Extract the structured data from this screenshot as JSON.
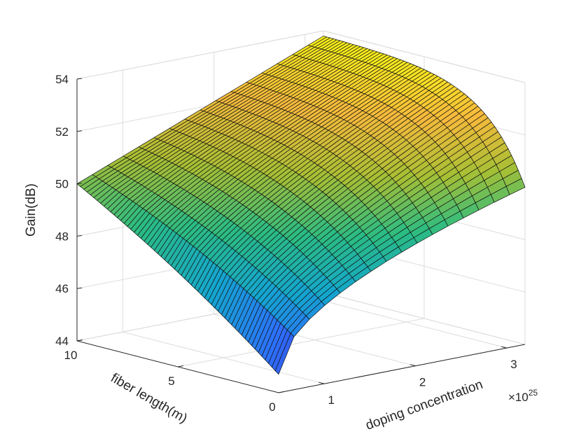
{
  "chart_data": {
    "type": "surface",
    "title": "",
    "xlabel": "doping concentration",
    "ylabel": "fiber length(m)",
    "zlabel": "Gain(dB)",
    "x_exponent": "×10",
    "x_exponent_power": "25",
    "xlim": [
      0.5,
      3.2
    ],
    "ylim": [
      0,
      10
    ],
    "zlim": [
      44,
      54
    ],
    "x_ticks": [
      1,
      2,
      3
    ],
    "x_tick_labels": [
      "1",
      "2",
      "3"
    ],
    "y_ticks": [
      0,
      5,
      10
    ],
    "y_tick_labels": [
      "0",
      "5",
      "10"
    ],
    "z_ticks": [
      44,
      46,
      48,
      50,
      52,
      54
    ],
    "z_tick_labels": [
      "44",
      "46",
      "48",
      "50",
      "52",
      "54"
    ],
    "grid": true,
    "colormap": "parula",
    "colormap_stops": [
      "#3e26a8",
      "#2e6efd",
      "#14a6ce",
      "#2bbc82",
      "#a7bf34",
      "#f7ba3c",
      "#f9fb14"
    ],
    "surface": {
      "x_range": [
        0.5,
        3.2
      ],
      "y_range": [
        0,
        10
      ],
      "rows": 60,
      "cols": 16,
      "corner_values": {
        "x_min_y_min": 44.7,
        "x_min_y_max": 50.0,
        "x_max_y_min": 50.0,
        "x_max_y_max": 53.8
      }
    }
  }
}
